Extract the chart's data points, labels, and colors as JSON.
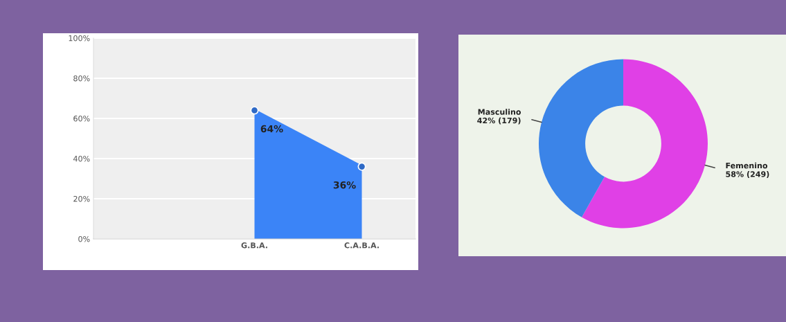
{
  "chart_data": [
    {
      "type": "area",
      "categories": [
        null,
        "G.B.A.",
        "C.A.B.A."
      ],
      "series": [
        {
          "color": "#3b84f7",
          "values": [
            null,
            64,
            36
          ]
        }
      ],
      "ylim": [
        0,
        100
      ],
      "yticks": [
        {
          "value": 0,
          "label": "0%"
        },
        {
          "value": 20,
          "label": "20%"
        },
        {
          "value": 40,
          "label": "40%"
        },
        {
          "value": 60,
          "label": "60%"
        },
        {
          "value": 80,
          "label": "80%"
        },
        {
          "value": 100,
          "label": "100%"
        }
      ],
      "value_labels": [
        null,
        "64%",
        "36%"
      ],
      "marker": "circle",
      "grid": "y",
      "legend": false
    },
    {
      "type": "donut",
      "categories": [
        "Femenino",
        "Masculino"
      ],
      "values": [
        249,
        179
      ],
      "colors": [
        "#e040e6",
        "#3b84e8"
      ],
      "value_labels": [
        "58% (249)",
        "42% (179)"
      ],
      "legend": false
    }
  ]
}
